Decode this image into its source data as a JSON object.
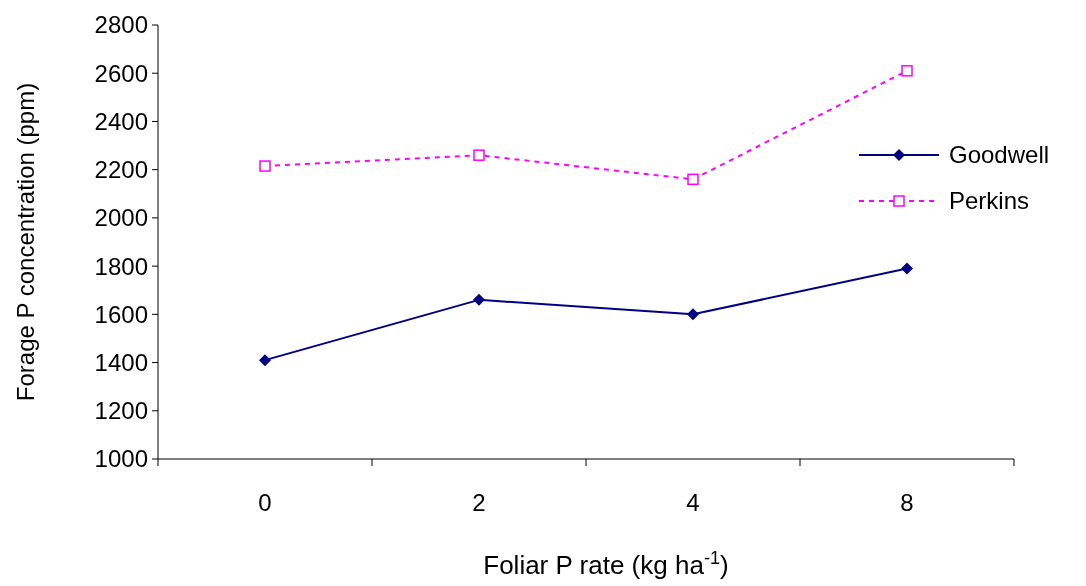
{
  "chart_data": {
    "type": "line",
    "xlabel": "Foliar P rate (kg ha$^{-1}$)",
    "ylabel": "Forage P concentration (ppm)",
    "categories": [
      "0",
      "2",
      "4",
      "8"
    ],
    "series": [
      {
        "name": "Goodwell",
        "color": "#000080",
        "values": [
          1410,
          1660,
          1600,
          1790
        ],
        "marker": "diamond",
        "line_style": "solid"
      },
      {
        "name": "Perkins",
        "color": "#ff00ff",
        "values": [
          2215,
          2260,
          2160,
          2610
        ],
        "marker": "square",
        "line_style": "dashed"
      }
    ],
    "ylim": [
      1000,
      2800
    ],
    "yticks": [
      1000,
      1200,
      1400,
      1600,
      1800,
      2000,
      2200,
      2400,
      2600,
      2800
    ],
    "grid": false,
    "legend": "right"
  }
}
